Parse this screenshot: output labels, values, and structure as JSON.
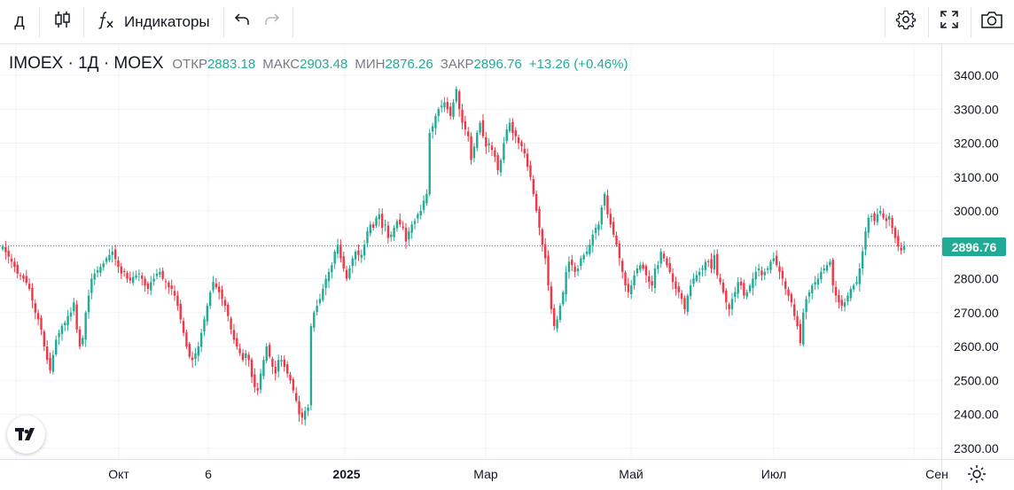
{
  "toolbar": {
    "interval": "Д",
    "indicators_label": "Индикаторы",
    "icons": [
      "candles-icon",
      "fx-icon",
      "undo-icon",
      "redo-icon",
      "settings-icon",
      "fullscreen-icon",
      "camera-icon"
    ]
  },
  "legend": {
    "symbol": "IMOEX · 1Д · MOEX",
    "open_label": "ОТКР",
    "open": "2883.18",
    "high_label": "МАКС",
    "high": "2903.48",
    "low_label": "МИН",
    "low": "2876.26",
    "close_label": "ЗАКР",
    "close": "2896.76",
    "change": "+13.26 (+0.46%)"
  },
  "price_scale": [
    "3400.00",
    "3300.00",
    "3200.00",
    "3100.00",
    "3000.00",
    "2900.00",
    "2800.00",
    "2700.00",
    "2600.00",
    "2500.00",
    "2400.00",
    "2300.00"
  ],
  "last_price": "2896.76",
  "time_axis": [
    "Окт",
    "6",
    "2025",
    "Мар",
    "Май",
    "Июл",
    "Сен"
  ],
  "colors": {
    "up": "#22ab94",
    "down": "#f23645",
    "grid": "#f0f3fa"
  },
  "chart_data": {
    "type": "candlestick",
    "title": "IMOEX · 1Д · MOEX",
    "ylim": [
      2270,
      3440
    ],
    "grid": true,
    "close_values": [
      2895,
      2878,
      2865,
      2850,
      2835,
      2815,
      2808,
      2800,
      2788,
      2770,
      2735,
      2700,
      2680,
      2650,
      2600,
      2560,
      2530,
      2575,
      2620,
      2640,
      2660,
      2670,
      2690,
      2700,
      2730,
      2650,
      2600,
      2625,
      2700,
      2750,
      2800,
      2815,
      2825,
      2835,
      2845,
      2860,
      2870,
      2880,
      2858,
      2835,
      2815,
      2820,
      2800,
      2795,
      2805,
      2810,
      2815,
      2800,
      2780,
      2770,
      2790,
      2800,
      2815,
      2820,
      2800,
      2790,
      2775,
      2770,
      2750,
      2720,
      2680,
      2640,
      2600,
      2570,
      2560,
      2580,
      2600,
      2640,
      2680,
      2720,
      2760,
      2790,
      2775,
      2760,
      2740,
      2720,
      2690,
      2650,
      2620,
      2600,
      2580,
      2560,
      2580,
      2560,
      2510,
      2480,
      2470,
      2520,
      2560,
      2600,
      2570,
      2540,
      2520,
      2560,
      2560,
      2540,
      2520,
      2500,
      2470,
      2440,
      2400,
      2390,
      2410,
      2420,
      2660,
      2700,
      2720,
      2740,
      2770,
      2800,
      2820,
      2840,
      2880,
      2900,
      2860,
      2830,
      2800,
      2830,
      2860,
      2880,
      2870,
      2870,
      2900,
      2940,
      2960,
      2950,
      2980,
      2990,
      2950,
      2960,
      2920,
      2930,
      2950,
      2970,
      2960,
      2950,
      2910,
      2940,
      2960,
      2970,
      2990,
      3000,
      3030,
      3050,
      3230,
      3250,
      3280,
      3300,
      3310,
      3320,
      3300,
      3280,
      3320,
      3360,
      3300,
      3260,
      3240,
      3220,
      3150,
      3190,
      3230,
      3260,
      3220,
      3190,
      3200,
      3180,
      3160,
      3120,
      3150,
      3200,
      3240,
      3260,
      3230,
      3220,
      3200,
      3190,
      3170,
      3130,
      3100,
      3050,
      3000,
      2950,
      2900,
      2860,
      2780,
      2710,
      2660,
      2680,
      2720,
      2760,
      2820,
      2850,
      2840,
      2820,
      2830,
      2860,
      2870,
      2880,
      2900,
      2930,
      2950,
      2960,
      3010,
      3050,
      2990,
      2960,
      2930,
      2900,
      2860,
      2820,
      2780,
      2760,
      2780,
      2810,
      2830,
      2840,
      2830,
      2810,
      2790,
      2780,
      2830,
      2840,
      2880,
      2860,
      2840,
      2820,
      2790,
      2770,
      2760,
      2740,
      2710,
      2750,
      2780,
      2800,
      2810,
      2820,
      2830,
      2850,
      2850,
      2830,
      2870,
      2810,
      2790,
      2760,
      2730,
      2710,
      2740,
      2760,
      2790,
      2780,
      2750,
      2760,
      2780,
      2800,
      2820,
      2830,
      2810,
      2820,
      2830,
      2850,
      2860,
      2840,
      2820,
      2800,
      2770,
      2750,
      2730,
      2690,
      2660,
      2610,
      2700,
      2740,
      2760,
      2780,
      2790,
      2800,
      2820,
      2830,
      2840,
      2850,
      2780,
      2750,
      2730,
      2720,
      2730,
      2750,
      2770,
      2780,
      2790,
      2830,
      2880,
      2940,
      2980,
      2985,
      2970,
      2990,
      3000,
      2980,
      2970,
      2985,
      2950,
      2920,
      2895,
      2883.18,
      2896.76
    ]
  }
}
